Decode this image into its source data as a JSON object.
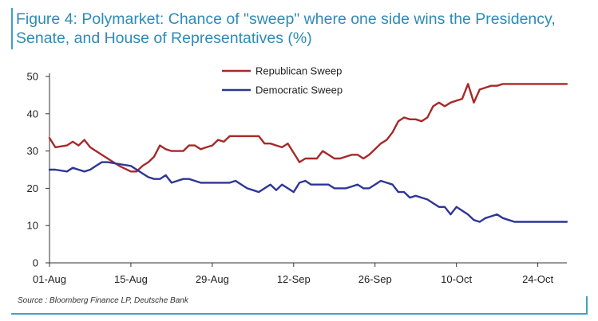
{
  "title": "Figure 4: Polymarket: Chance of \"sweep\" where one side wins the Presidency, Senate, and House of Representatives (%)",
  "source": "Source : Bloomberg Finance LP, Deutsche Bank",
  "chart_data": {
    "type": "line",
    "title": "Figure 4: Polymarket: Chance of \"sweep\" where one side wins the Presidency, Senate, and House of Representatives (%)",
    "xlabel": "",
    "ylabel": "",
    "ylim": [
      0,
      50
    ],
    "yticks": [
      0,
      10,
      20,
      30,
      40,
      50
    ],
    "xlim": [
      "01-Aug",
      "30-Oct"
    ],
    "xtick_labels": [
      "01-Aug",
      "15-Aug",
      "29-Aug",
      "12-Sep",
      "26-Sep",
      "10-Oct",
      "24-Oct"
    ],
    "grid": false,
    "legend_position": "top-center",
    "x": [
      0,
      1,
      3,
      4,
      5,
      6,
      7,
      8,
      9,
      10,
      12,
      14,
      15,
      16,
      17,
      18,
      19,
      20,
      21,
      22,
      23,
      24,
      25,
      26,
      27,
      28,
      29,
      30,
      31,
      32,
      33,
      34,
      35,
      36,
      37,
      38,
      39,
      40,
      41,
      42,
      43,
      44,
      45,
      46,
      47,
      48,
      49,
      50,
      51,
      52,
      53,
      54,
      55,
      56,
      57,
      58,
      59,
      60,
      61,
      62,
      63,
      64,
      65,
      66,
      67,
      68,
      69,
      70,
      71,
      72,
      73,
      74,
      75,
      76,
      77,
      78,
      79,
      80,
      81,
      82,
      83,
      84,
      85,
      86,
      87,
      88,
      89
    ],
    "series": [
      {
        "name": "Republican Sweep",
        "color": "#a52a2a",
        "x": [
          0,
          1,
          3,
          4,
          5,
          6,
          7,
          8,
          9,
          10,
          12,
          14,
          15,
          16,
          17,
          18,
          19,
          20,
          21,
          22,
          23,
          24,
          25,
          26,
          27,
          28,
          29,
          30,
          31,
          32,
          33,
          34,
          35,
          36,
          37,
          38,
          39,
          40,
          41,
          42,
          43,
          44,
          45,
          46,
          47,
          48,
          49,
          50,
          51,
          52,
          53,
          54,
          55,
          56,
          57,
          58,
          59,
          60,
          61,
          62,
          63,
          64,
          65,
          66,
          67,
          68,
          69,
          70,
          71,
          72,
          73,
          74,
          75,
          76,
          77,
          78,
          79,
          80,
          81,
          82,
          83,
          84,
          85,
          86,
          87,
          88,
          89
        ],
        "values": [
          33.5,
          31,
          31.5,
          32.5,
          31.5,
          33,
          31,
          30,
          29,
          28,
          26,
          24.5,
          24.5,
          26,
          27,
          28.5,
          31.5,
          30.5,
          30,
          30,
          30,
          31.5,
          31.5,
          30.5,
          31,
          31.5,
          33,
          32.5,
          34,
          34,
          34,
          34,
          34,
          34,
          32,
          32,
          31.5,
          31,
          32,
          29.5,
          27,
          28,
          28,
          28,
          30,
          29,
          28,
          28,
          28.5,
          29,
          29,
          28,
          29,
          30.5,
          32,
          33,
          35,
          38,
          39,
          38.5,
          38.5,
          38,
          39,
          42,
          43,
          42,
          43,
          43.5,
          44,
          48,
          43,
          46.5,
          47,
          47.5,
          47.5,
          48,
          48,
          48,
          48,
          48,
          48,
          48,
          48,
          48,
          48,
          48,
          48
        ]
      },
      {
        "name": "Democratic Sweep",
        "color": "#2e3596",
        "x": [
          0,
          1,
          3,
          4,
          5,
          6,
          7,
          8,
          9,
          10,
          12,
          14,
          15,
          16,
          17,
          18,
          19,
          20,
          21,
          22,
          23,
          24,
          25,
          26,
          27,
          28,
          29,
          30,
          31,
          32,
          33,
          34,
          35,
          36,
          37,
          38,
          39,
          40,
          41,
          42,
          43,
          44,
          45,
          46,
          47,
          48,
          49,
          50,
          51,
          52,
          53,
          54,
          55,
          56,
          57,
          58,
          59,
          60,
          61,
          62,
          63,
          64,
          65,
          66,
          67,
          68,
          69,
          70,
          71,
          72,
          73,
          74,
          75,
          76,
          77,
          78,
          79,
          80,
          81,
          82,
          83,
          84,
          85,
          86,
          87,
          88,
          89
        ],
        "values": [
          25,
          25,
          24.5,
          25.5,
          25,
          24.5,
          25,
          26,
          27,
          27,
          26.5,
          26,
          25,
          24,
          23,
          22.5,
          22.5,
          23.5,
          21.5,
          22,
          22.5,
          22.5,
          22,
          21.5,
          21.5,
          21.5,
          21.5,
          21.5,
          21.5,
          22,
          21,
          20,
          19.5,
          19,
          20,
          21,
          19.5,
          21,
          20,
          19,
          21.5,
          22,
          21,
          21,
          21,
          21,
          20,
          20,
          20,
          20.5,
          21,
          20,
          20,
          21,
          22,
          21.5,
          21,
          19,
          19,
          17.5,
          18,
          17.5,
          17,
          16,
          15,
          15,
          13,
          15,
          14,
          13,
          11.5,
          11,
          12,
          12.5,
          13,
          12,
          11.5,
          11,
          11,
          11,
          11,
          11,
          11,
          11,
          11,
          11,
          11
        ]
      }
    ]
  }
}
